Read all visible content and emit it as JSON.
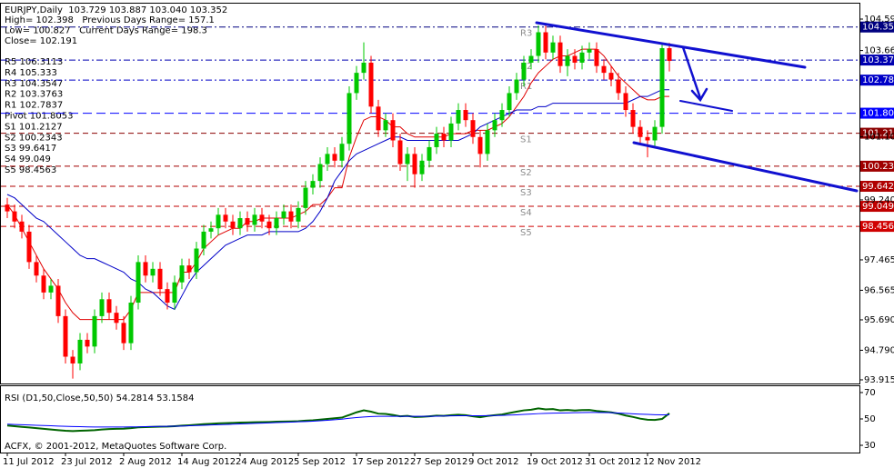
{
  "chart_data": [
    {
      "type": "candlestick",
      "title": "EURJPY,Daily  103.729 103.887 103.040 103.352",
      "info_lines": [
        "High= 102.398   Previous Days Range= 157.1",
        "Low= 100.827   Current Days Range= 198.3",
        "Close= 102.191",
        "R5 106.3113",
        "R4 105.333",
        "R3 104.3547",
        "R2 103.3763",
        "R1 102.7837",
        "Pivot 101.8053",
        "S1 101.2127",
        "S2 100.2343",
        "S3 99.6417",
        "S4 99.049",
        "S5 98.4563"
      ],
      "categories": [
        "11 Jul 2012",
        null,
        null,
        null,
        null,
        null,
        null,
        null,
        "23 Jul 2012",
        null,
        null,
        null,
        null,
        null,
        null,
        null,
        "2 Aug 2012",
        null,
        null,
        null,
        null,
        null,
        null,
        null,
        "14 Aug 2012",
        null,
        null,
        null,
        null,
        null,
        null,
        null,
        "24 Aug 2012",
        null,
        null,
        null,
        null,
        null,
        null,
        null,
        "5 Sep 2012",
        null,
        null,
        null,
        null,
        null,
        null,
        null,
        "17 Sep 2012",
        null,
        null,
        null,
        null,
        null,
        null,
        null,
        "27 Sep 2012",
        null,
        null,
        null,
        null,
        null,
        null,
        null,
        "9 Oct 2012",
        null,
        null,
        null,
        null,
        null,
        null,
        null,
        "19 Oct 2012",
        null,
        null,
        null,
        null,
        null,
        null,
        null,
        "31 Oct 2012",
        null,
        null,
        null,
        null,
        null,
        null,
        null,
        "12 Nov 2012",
        null,
        null,
        null
      ],
      "open": [
        99.1,
        98.9,
        98.6,
        98.3,
        97.4,
        97.0,
        96.5,
        96.7,
        95.8,
        94.6,
        94.4,
        95.1,
        94.9,
        95.8,
        96.3,
        95.9,
        95.6,
        95.0,
        96.2,
        97.4,
        97.0,
        97.2,
        96.6,
        96.2,
        96.8,
        97.3,
        97.1,
        97.8,
        98.3,
        98.4,
        98.8,
        98.6,
        98.4,
        98.7,
        98.5,
        98.8,
        98.6,
        98.4,
        98.7,
        98.9,
        98.6,
        99.0,
        99.6,
        99.8,
        100.3,
        100.6,
        100.4,
        100.9,
        102.4,
        103.0,
        103.3,
        102.0,
        101.3,
        101.6,
        101.0,
        100.3,
        100.6,
        100.0,
        100.4,
        100.8,
        101.2,
        101.0,
        101.5,
        101.9,
        101.6,
        101.1,
        100.6,
        101.3,
        101.6,
        101.9,
        102.4,
        102.8,
        103.3,
        103.5,
        104.2,
        103.6,
        103.9,
        103.2,
        103.5,
        103.3,
        103.6,
        103.7,
        103.2,
        103.0,
        102.8,
        102.4,
        101.9,
        101.4,
        101.1,
        101.0,
        101.4,
        103.729
      ],
      "high": [
        99.3,
        99.1,
        98.8,
        98.5,
        97.6,
        97.2,
        96.9,
        96.9,
        96.0,
        94.8,
        95.3,
        95.3,
        96.0,
        96.5,
        96.5,
        96.1,
        95.8,
        96.4,
        97.6,
        97.6,
        97.4,
        97.4,
        96.8,
        97.0,
        97.5,
        97.5,
        98.0,
        98.5,
        98.6,
        99.0,
        99.0,
        98.8,
        98.9,
        98.9,
        99.0,
        99.0,
        98.8,
        98.9,
        99.1,
        99.1,
        99.2,
        99.8,
        100.0,
        100.5,
        100.8,
        100.8,
        101.1,
        102.6,
        103.2,
        103.9,
        103.5,
        102.2,
        101.8,
        101.8,
        101.2,
        100.8,
        100.8,
        100.6,
        101.0,
        101.4,
        101.4,
        101.7,
        102.1,
        102.1,
        101.8,
        101.3,
        101.5,
        101.8,
        102.1,
        102.6,
        103.0,
        103.5,
        103.7,
        104.4,
        104.4,
        104.1,
        104.1,
        103.7,
        103.7,
        103.8,
        103.9,
        103.9,
        103.4,
        103.2,
        103.0,
        102.6,
        102.1,
        101.6,
        101.3,
        101.6,
        103.9,
        103.887
      ],
      "low": [
        98.7,
        98.4,
        98.1,
        97.2,
        96.8,
        96.3,
        96.3,
        95.6,
        94.4,
        93.95,
        94.2,
        94.7,
        94.7,
        95.6,
        95.7,
        95.4,
        94.8,
        94.8,
        96.0,
        96.8,
        96.8,
        96.4,
        96.0,
        96.0,
        96.6,
        96.9,
        96.9,
        97.6,
        98.1,
        98.2,
        98.4,
        98.2,
        98.2,
        98.3,
        98.3,
        98.4,
        98.2,
        98.2,
        98.5,
        98.4,
        98.4,
        98.8,
        99.4,
        99.6,
        100.1,
        100.2,
        100.2,
        100.7,
        102.2,
        102.8,
        101.8,
        101.1,
        101.1,
        100.8,
        100.1,
        99.8,
        99.6,
        99.8,
        100.2,
        100.6,
        100.8,
        100.8,
        101.3,
        101.4,
        100.9,
        100.2,
        100.4,
        101.1,
        101.4,
        101.7,
        102.2,
        102.6,
        103.1,
        103.3,
        103.4,
        103.4,
        103.0,
        102.9,
        103.1,
        103.1,
        103.4,
        103.0,
        102.8,
        102.6,
        102.2,
        101.7,
        101.2,
        100.9,
        100.5,
        100.8,
        101.2,
        103.04
      ],
      "close": [
        98.9,
        98.6,
        98.3,
        97.4,
        97.0,
        96.5,
        96.7,
        95.8,
        94.6,
        94.4,
        95.1,
        94.9,
        95.8,
        96.3,
        95.9,
        95.6,
        95.0,
        96.2,
        97.4,
        97.0,
        97.2,
        96.6,
        96.2,
        96.8,
        97.3,
        97.1,
        97.8,
        98.3,
        98.4,
        98.8,
        98.6,
        98.4,
        98.7,
        98.5,
        98.8,
        98.6,
        98.4,
        98.7,
        98.9,
        98.6,
        99.0,
        99.6,
        99.8,
        100.3,
        100.6,
        100.4,
        100.9,
        102.4,
        103.0,
        103.3,
        102.0,
        101.3,
        101.6,
        101.0,
        100.3,
        100.6,
        100.0,
        100.4,
        100.8,
        101.2,
        101.0,
        101.5,
        101.9,
        101.6,
        101.1,
        100.6,
        101.3,
        101.6,
        101.9,
        102.4,
        102.8,
        103.3,
        103.5,
        104.2,
        103.6,
        103.9,
        103.2,
        103.5,
        103.3,
        103.6,
        103.7,
        103.2,
        103.0,
        102.8,
        102.4,
        101.9,
        101.4,
        101.1,
        101.0,
        101.4,
        103.729,
        103.352
      ],
      "up_color": "#00c800",
      "down_color": "#ff0000",
      "lines": [
        {
          "color": "#e00000",
          "values": [
            99.1,
            98.8,
            98.4,
            98.0,
            97.6,
            97.2,
            96.9,
            96.6,
            96.2,
            95.9,
            95.7,
            95.7,
            95.7,
            95.7,
            95.7,
            95.7,
            95.7,
            96.0,
            96.5,
            96.5,
            96.5,
            96.5,
            96.5,
            96.5,
            97.1,
            97.1,
            97.4,
            97.8,
            98.0,
            98.2,
            98.3,
            98.4,
            98.4,
            98.6,
            98.6,
            98.7,
            98.7,
            98.7,
            98.7,
            98.7,
            98.8,
            98.9,
            99.1,
            99.1,
            99.3,
            99.6,
            99.6,
            100.5,
            101.1,
            101.6,
            101.7,
            101.7,
            101.6,
            101.4,
            101.4,
            101.2,
            101.1,
            101.1,
            101.1,
            101.1,
            101.1,
            101.2,
            101.2,
            101.2,
            101.3,
            101.3,
            101.3,
            101.4,
            101.5,
            101.7,
            102.0,
            102.3,
            102.7,
            103.0,
            103.2,
            103.4,
            103.5,
            103.5,
            103.6,
            103.7,
            103.7,
            103.7,
            103.5,
            103.2,
            102.9,
            102.7,
            102.5,
            102.3,
            102.2,
            102.2,
            102.3,
            102.3
          ]
        },
        {
          "color": "#0000c8",
          "values": [
            99.4,
            99.3,
            99.1,
            98.9,
            98.7,
            98.6,
            98.4,
            98.2,
            98.0,
            97.8,
            97.6,
            97.5,
            97.5,
            97.4,
            97.3,
            97.2,
            97.1,
            96.9,
            96.8,
            96.6,
            96.5,
            96.3,
            96.1,
            96.0,
            96.4,
            96.8,
            97.1,
            97.3,
            97.5,
            97.7,
            97.9,
            98.0,
            98.1,
            98.2,
            98.2,
            98.2,
            98.3,
            98.3,
            98.3,
            98.3,
            98.3,
            98.4,
            98.6,
            98.9,
            99.3,
            99.8,
            100.1,
            100.4,
            100.6,
            100.7,
            100.8,
            100.9,
            101.0,
            101.1,
            101.1,
            101.0,
            101.0,
            101.0,
            101.0,
            101.0,
            101.0,
            101.0,
            101.0,
            101.1,
            101.2,
            101.4,
            101.5,
            101.6,
            101.7,
            101.8,
            101.9,
            101.9,
            101.9,
            102.0,
            102.0,
            102.1,
            102.1,
            102.1,
            102.1,
            102.1,
            102.1,
            102.1,
            102.1,
            102.1,
            102.1,
            102.1,
            102.2,
            102.3,
            102.3,
            102.4,
            102.5,
            102.5
          ]
        }
      ],
      "levels": [
        {
          "value": 104.355,
          "tag": "R3",
          "color": "#000080"
        },
        {
          "value": 103.378,
          "tag": "R2",
          "color": "#0000b0"
        },
        {
          "value": 102.784,
          "tag": "R1",
          "color": "#0000c8"
        },
        {
          "value": 101.805,
          "color": "#0000ff"
        },
        {
          "value": 101.213,
          "tag": "S1",
          "color": "#8b0000"
        },
        {
          "value": 100.236,
          "tag": "S2",
          "color": "#a00000"
        },
        {
          "value": 99.642,
          "tag": "S3",
          "color": "#b00000"
        },
        {
          "value": 99.049,
          "tag": "S4",
          "color": "#c00000"
        },
        {
          "value": 98.456,
          "tag": "S5",
          "color": "#d00000"
        }
      ],
      "ylim": [
        93.807,
        105.047
      ],
      "yticks": [
        {
          "value": 104.59,
          "label": "104.590"
        },
        {
          "value": 103.66,
          "label": "103.660"
        },
        101.105,
        {
          "value": 99.24,
          "label": "99.240"
        },
        97.465,
        96.565,
        {
          "value": 95.69,
          "label": "95.690"
        },
        {
          "value": 94.79,
          "label": "94.790"
        },
        93.915
      ]
    },
    {
      "type": "line",
      "title": "RSI (D1,50,Close,50,50) 54.2814 53.1584",
      "footer": "ACFX, © 2001-2012, MetaQuotes Software Corp.",
      "series": [
        {
          "color": "#006400",
          "values": [
            45,
            44.5,
            44,
            43.5,
            43,
            42.5,
            42,
            41.5,
            41,
            40.8,
            41,
            41.2,
            41.5,
            42,
            42.3,
            42.5,
            42.6,
            43,
            43.6,
            43.8,
            44,
            44.1,
            44.2,
            44.5,
            44.9,
            45.2,
            45.6,
            46,
            46.3,
            46.6,
            46.8,
            47,
            47.2,
            47.3,
            47.5,
            47.6,
            47.7,
            47.9,
            48,
            48.1,
            48.3,
            48.7,
            49,
            49.5,
            50,
            50.5,
            51,
            53,
            55,
            56.5,
            55.5,
            54,
            53.8,
            53,
            52,
            52.3,
            51.5,
            51.6,
            52,
            52.5,
            52.3,
            52.8,
            53.2,
            52.8,
            52,
            51.3,
            52.2,
            52.8,
            53.4,
            54.5,
            55.5,
            56.5,
            57,
            58,
            57.2,
            57.5,
            56.5,
            56.8,
            56.4,
            56.7,
            56.8,
            56,
            55.5,
            55,
            54,
            52.6,
            51.5,
            50.2,
            49.4,
            49.2,
            50,
            54.2814
          ]
        },
        {
          "color": "#0000ff",
          "values": [
            46,
            45.8,
            45.6,
            45.4,
            45.2,
            45,
            44.8,
            44.6,
            44.4,
            44.2,
            44.1,
            44,
            43.9,
            43.9,
            43.9,
            43.9,
            43.9,
            44,
            44,
            44.1,
            44.2,
            44.3,
            44.4,
            44.5,
            44.6,
            44.8,
            45,
            45.2,
            45.4,
            45.6,
            45.8,
            46,
            46.2,
            46.4,
            46.6,
            46.8,
            47,
            47.2,
            47.4,
            47.6,
            47.8,
            48,
            48.3,
            48.6,
            49,
            49.4,
            49.8,
            50.5,
            51,
            51.5,
            51.8,
            52,
            52,
            52,
            52,
            52,
            52,
            52,
            52,
            52.1,
            52.2,
            52.3,
            52.4,
            52.4,
            52.4,
            52.4,
            52.5,
            52.6,
            52.7,
            52.9,
            53.1,
            53.4,
            53.7,
            54,
            54.2,
            54.4,
            54.5,
            54.6,
            54.7,
            54.8,
            54.9,
            54.9,
            54.8,
            54.7,
            54.5,
            54.2,
            53.9,
            53.6,
            53.4,
            53.2,
            53.1,
            53.1584
          ]
        }
      ],
      "ylim": [
        24.5,
        74.8
      ],
      "yticks": [
        70,
        50,
        30
      ]
    }
  ]
}
